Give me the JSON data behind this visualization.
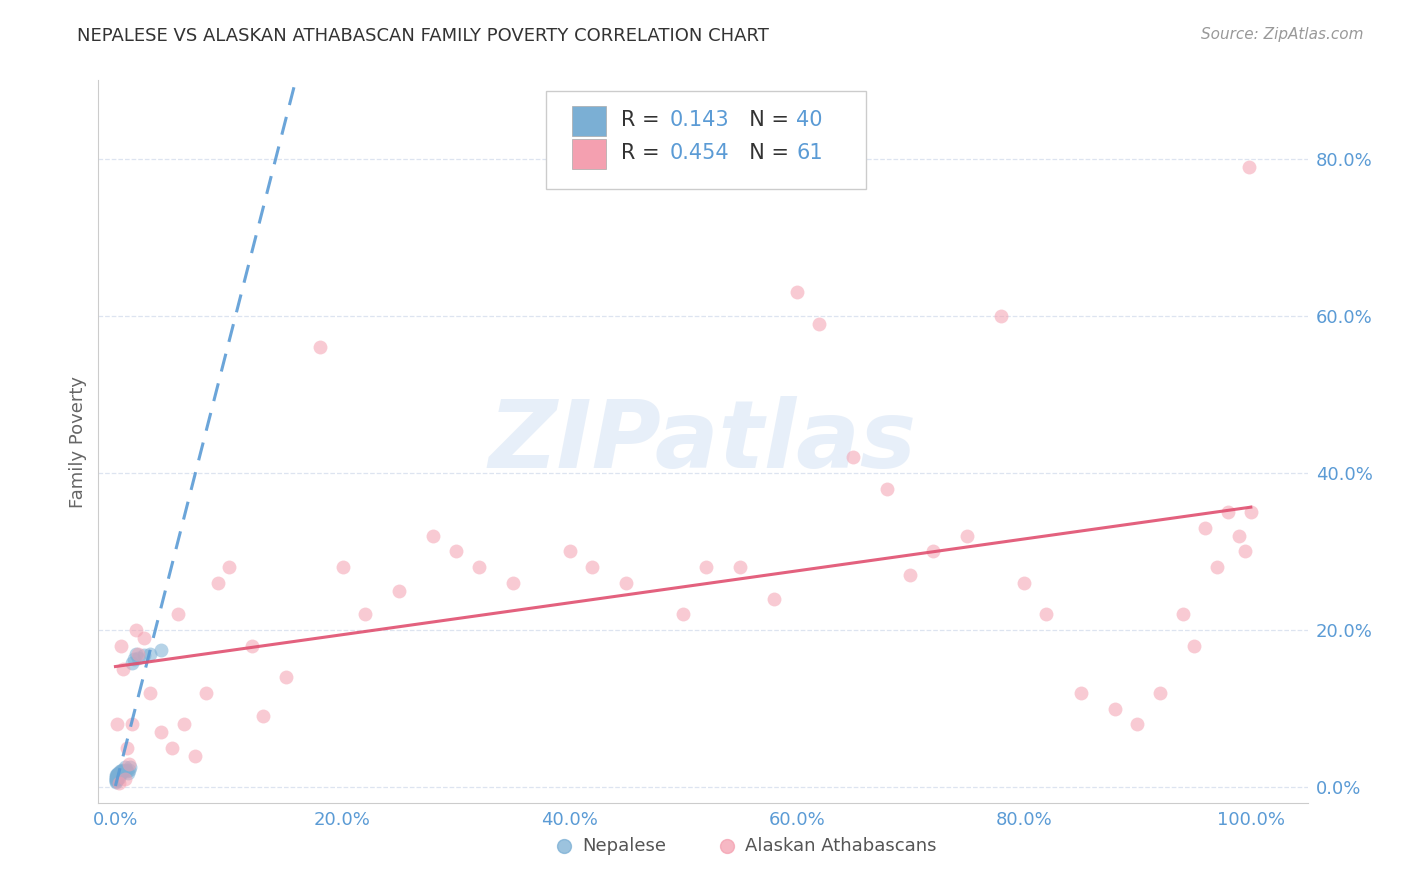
{
  "title": "NEPALESE VS ALASKAN ATHABASCAN FAMILY POVERTY CORRELATION CHART",
  "source": "Source: ZipAtlas.com",
  "ylabel": "Family Poverty",
  "nepalese_color": "#7bafd4",
  "athabascan_color": "#f4a0b0",
  "nepalese_line_color": "#5b9bd5",
  "athabascan_line_color": "#e05070",
  "R_nepalese": 0.143,
  "N_nepalese": 40,
  "R_athabascan": 0.454,
  "N_athabascan": 61,
  "nepalese_x": [
    0.0002,
    0.0003,
    0.0004,
    0.0005,
    0.0006,
    0.0007,
    0.0008,
    0.001,
    0.001,
    0.0012,
    0.0013,
    0.0015,
    0.0016,
    0.0018,
    0.002,
    0.002,
    0.0022,
    0.0025,
    0.003,
    0.003,
    0.0035,
    0.004,
    0.004,
    0.005,
    0.005,
    0.006,
    0.007,
    0.008,
    0.009,
    0.01,
    0.011,
    0.012,
    0.013,
    0.015,
    0.016,
    0.018,
    0.02,
    0.025,
    0.03,
    0.04
  ],
  "nepalese_y": [
    0.01,
    0.008,
    0.012,
    0.015,
    0.009,
    0.007,
    0.013,
    0.011,
    0.016,
    0.014,
    0.01,
    0.015,
    0.017,
    0.013,
    0.012,
    0.016,
    0.018,
    0.014,
    0.016,
    0.018,
    0.012,
    0.017,
    0.02,
    0.018,
    0.02,
    0.022,
    0.02,
    0.025,
    0.022,
    0.02,
    0.018,
    0.022,
    0.025,
    0.158,
    0.163,
    0.17,
    0.165,
    0.168,
    0.17,
    0.175
  ],
  "athabascan_x": [
    0.001,
    0.003,
    0.005,
    0.007,
    0.008,
    0.01,
    0.012,
    0.015,
    0.018,
    0.02,
    0.025,
    0.03,
    0.04,
    0.05,
    0.055,
    0.06,
    0.07,
    0.08,
    0.09,
    0.1,
    0.12,
    0.13,
    0.15,
    0.18,
    0.2,
    0.22,
    0.25,
    0.28,
    0.3,
    0.32,
    0.35,
    0.4,
    0.42,
    0.45,
    0.5,
    0.52,
    0.55,
    0.58,
    0.6,
    0.62,
    0.65,
    0.68,
    0.7,
    0.72,
    0.75,
    0.78,
    0.8,
    0.82,
    0.85,
    0.88,
    0.9,
    0.92,
    0.94,
    0.95,
    0.96,
    0.97,
    0.98,
    0.99,
    0.995,
    0.998,
    1.0
  ],
  "athabascan_y": [
    0.08,
    0.005,
    0.18,
    0.15,
    0.01,
    0.05,
    0.03,
    0.08,
    0.2,
    0.17,
    0.19,
    0.12,
    0.07,
    0.05,
    0.22,
    0.08,
    0.04,
    0.12,
    0.26,
    0.28,
    0.18,
    0.09,
    0.14,
    0.56,
    0.28,
    0.22,
    0.25,
    0.32,
    0.3,
    0.28,
    0.26,
    0.3,
    0.28,
    0.26,
    0.22,
    0.28,
    0.28,
    0.24,
    0.63,
    0.59,
    0.42,
    0.38,
    0.27,
    0.3,
    0.32,
    0.6,
    0.26,
    0.22,
    0.12,
    0.1,
    0.08,
    0.12,
    0.22,
    0.18,
    0.33,
    0.28,
    0.35,
    0.32,
    0.3,
    0.79,
    0.35
  ],
  "watermark": "ZIPatlas",
  "background_color": "#ffffff",
  "grid_color": "#dde4f0",
  "xticks": [
    0.0,
    0.2,
    0.4,
    0.6,
    0.8,
    1.0
  ],
  "yticks": [
    0.0,
    0.2,
    0.4,
    0.6,
    0.8
  ],
  "xlim": [
    -0.015,
    1.05
  ],
  "ylim": [
    -0.02,
    0.9
  ]
}
